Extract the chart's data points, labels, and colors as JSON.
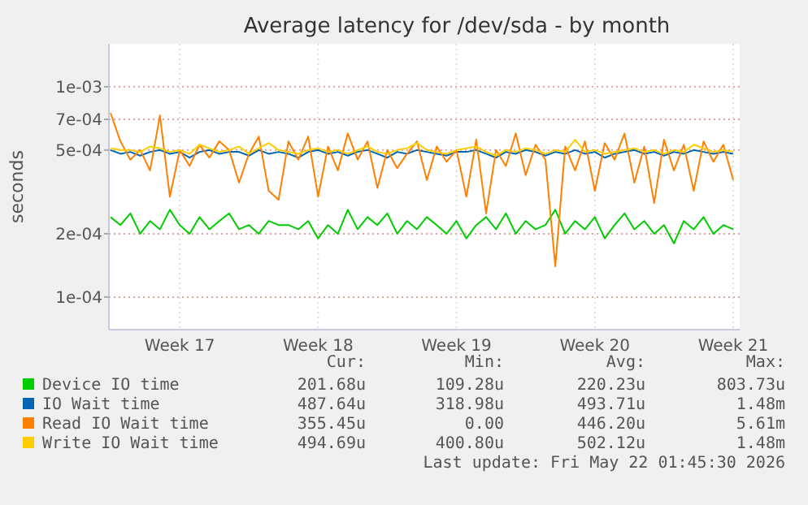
{
  "chart_data": {
    "type": "line",
    "title": "Average latency for /dev/sda - by month",
    "ylabel": "seconds",
    "log": true,
    "grid": true,
    "legend": "bottom",
    "ylim": [
      7e-05,
      0.0016
    ],
    "yticks": [
      {
        "value": 0.0001,
        "label": "1e-04"
      },
      {
        "value": 0.0002,
        "label": "2e-04"
      },
      {
        "value": 0.0005,
        "label": "5e-04"
      },
      {
        "value": 0.0007,
        "label": "7e-04"
      },
      {
        "value": 0.001,
        "label": "1e-03"
      }
    ],
    "categories": [
      null,
      null,
      null,
      null,
      null,
      null,
      null,
      "Week 17",
      null,
      null,
      null,
      null,
      null,
      null,
      null,
      null,
      null,
      null,
      null,
      null,
      null,
      "Week 18",
      null,
      null,
      null,
      null,
      null,
      null,
      null,
      null,
      null,
      null,
      null,
      null,
      null,
      "Week 19",
      null,
      null,
      null,
      null,
      null,
      null,
      null,
      null,
      null,
      null,
      null,
      null,
      null,
      "Week 20",
      null,
      null,
      null,
      null,
      null,
      null,
      null,
      null,
      null,
      null,
      null,
      null,
      null,
      "Week 21"
    ],
    "series": [
      {
        "name": "Device IO time",
        "color": "#00cc00",
        "values": [
          0.00024,
          0.00022,
          0.00025,
          0.0002,
          0.00023,
          0.00021,
          0.00026,
          0.00022,
          0.0002,
          0.00024,
          0.00021,
          0.00023,
          0.00025,
          0.00021,
          0.00022,
          0.0002,
          0.00023,
          0.00022,
          0.00022,
          0.00021,
          0.00023,
          0.00019,
          0.00022,
          0.0002,
          0.00026,
          0.00021,
          0.00024,
          0.00022,
          0.00025,
          0.0002,
          0.00023,
          0.00021,
          0.00024,
          0.00022,
          0.0002,
          0.00023,
          0.00019,
          0.00022,
          0.00024,
          0.00021,
          0.00025,
          0.0002,
          0.00023,
          0.00021,
          0.00022,
          0.00026,
          0.0002,
          0.00023,
          0.00021,
          0.00024,
          0.00019,
          0.00022,
          0.00025,
          0.00021,
          0.00023,
          0.0002,
          0.00022,
          0.00018,
          0.00023,
          0.00021,
          0.00024,
          0.0002,
          0.00022,
          0.00021
        ]
      },
      {
        "name": "IO Wait time",
        "color": "#0066b3",
        "values": [
          0.0005,
          0.00048,
          0.00049,
          0.00047,
          0.00049,
          0.0005,
          0.00048,
          0.00049,
          0.00046,
          0.00049,
          0.0005,
          0.00048,
          0.00049,
          0.00049,
          0.00047,
          0.0005,
          0.00048,
          0.00049,
          0.00048,
          0.00046,
          0.00049,
          0.0005,
          0.00048,
          0.00049,
          0.00047,
          0.00049,
          0.0005,
          0.00048,
          0.00046,
          0.00049,
          0.00048,
          0.0005,
          0.00049,
          0.00048,
          0.00047,
          0.00049,
          0.00049,
          0.0005,
          0.00048,
          0.00046,
          0.00049,
          0.00048,
          0.0005,
          0.00049,
          0.00047,
          0.00049,
          0.00048,
          0.0005,
          0.00048,
          0.00049,
          0.00046,
          0.00048,
          0.00049,
          0.0005,
          0.00048,
          0.00049,
          0.00047,
          0.00049,
          0.00048,
          0.0005,
          0.00049,
          0.00048,
          0.00049,
          0.00048
        ]
      },
      {
        "name": "Read IO Wait time",
        "color": "#ff8000",
        "values": [
          0.00075,
          0.00055,
          0.00045,
          0.0005,
          0.0004,
          0.00073,
          0.0003,
          0.0005,
          0.00042,
          0.00053,
          0.00046,
          0.00055,
          0.0005,
          0.00035,
          0.00048,
          0.00058,
          0.00032,
          0.00029,
          0.00055,
          0.00045,
          0.00058,
          0.0003,
          0.00052,
          0.0004,
          0.0006,
          0.00045,
          0.00055,
          0.00033,
          0.0005,
          0.00041,
          0.00048,
          0.00055,
          0.00036,
          0.00052,
          0.00044,
          0.0005,
          0.0003,
          0.00056,
          0.00025,
          0.0005,
          0.00042,
          0.0006,
          0.00038,
          0.00053,
          0.00045,
          0.00014,
          0.00052,
          0.0004,
          0.00055,
          0.00032,
          0.00054,
          0.00045,
          0.0006,
          0.00035,
          0.00052,
          0.00028,
          0.00056,
          0.0004,
          0.00053,
          0.00032,
          0.00055,
          0.00044,
          0.00053,
          0.00036
        ]
      },
      {
        "name": "Write IO Wait time",
        "color": "#ffcc00",
        "values": [
          0.00051,
          0.0005,
          0.0005,
          0.00049,
          0.00052,
          0.00051,
          0.00049,
          0.0005,
          0.00048,
          0.00053,
          0.00051,
          0.00049,
          0.0005,
          0.00052,
          0.00048,
          0.00051,
          0.00054,
          0.0005,
          0.00049,
          0.00048,
          0.0005,
          0.00051,
          0.00049,
          0.0005,
          0.00048,
          0.0005,
          0.00052,
          0.00049,
          0.00048,
          0.0005,
          0.00051,
          0.00054,
          0.0005,
          0.00049,
          0.00048,
          0.0005,
          0.00051,
          0.00052,
          0.00049,
          0.00047,
          0.0005,
          0.00049,
          0.00051,
          0.0005,
          0.00048,
          0.0005,
          0.00049,
          0.00056,
          0.00049,
          0.0005,
          0.00048,
          0.00049,
          0.0005,
          0.00051,
          0.00049,
          0.0005,
          0.00048,
          0.0005,
          0.00049,
          0.00053,
          0.00051,
          0.00049,
          0.0005,
          0.00049
        ]
      }
    ],
    "annotations": [
      "Cur:",
      "Min:",
      "Avg:",
      "Max:",
      "201.68u",
      "109.28u",
      "220.23u",
      "803.73u",
      "487.64u",
      "318.98u",
      "493.71u",
      "1.48m",
      "355.45u",
      "0.00",
      "446.20u",
      "5.61m",
      "494.69u",
      "400.80u",
      "502.12u",
      "1.48m",
      "Last update: Fri May 22 01:45:30 2026"
    ]
  }
}
